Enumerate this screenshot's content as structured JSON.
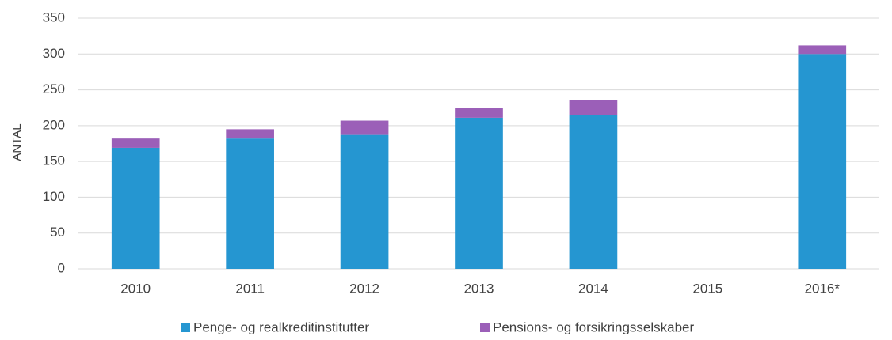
{
  "chart_data": {
    "type": "stacked_bar",
    "y_label": "ANTAL",
    "categories": [
      "2010",
      "2011",
      "2012",
      "2013",
      "2014",
      "2015",
      "2016*"
    ],
    "series": [
      {
        "name": "Penge- og realkreditinstitutter",
        "color": "#2596d1",
        "values": [
          169,
          182,
          187,
          211,
          215,
          null,
          300
        ]
      },
      {
        "name": "Pensions- og forsikringsselskaber",
        "color": "#9b5fb8",
        "values": [
          13,
          13,
          20,
          14,
          21,
          null,
          12
        ]
      }
    ],
    "ylim": [
      0,
      350
    ],
    "yticks": [
      0,
      50,
      100,
      150,
      200,
      250,
      300,
      350
    ],
    "grid": true,
    "legend": "bottom"
  }
}
